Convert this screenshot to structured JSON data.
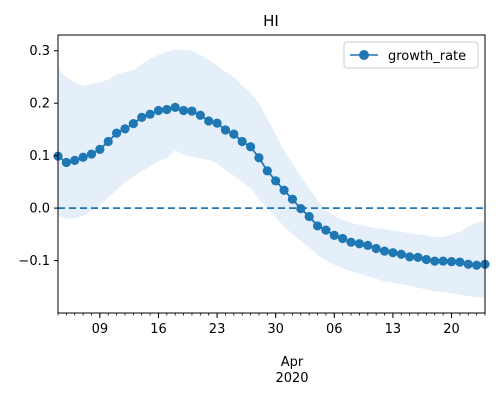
{
  "chart_data": {
    "type": "line",
    "title": "HI",
    "xlabel": "",
    "ylabel": "",
    "x_axis": {
      "type": "date",
      "range": [
        "2020-03-04",
        "2020-04-24"
      ],
      "major_ticks": [
        {
          "date": "2020-03-09",
          "label": "09"
        },
        {
          "date": "2020-03-16",
          "label": "16"
        },
        {
          "date": "2020-03-23",
          "label": "23"
        },
        {
          "date": "2020-03-30",
          "label": "30"
        },
        {
          "date": "2020-04-06",
          "label": "06"
        },
        {
          "date": "2020-04-13",
          "label": "13"
        },
        {
          "date": "2020-04-20",
          "label": "20"
        }
      ],
      "month_label": "Apr",
      "year_label": "2020"
    },
    "ylim": [
      -0.2,
      0.33
    ],
    "y_ticks": [
      {
        "value": -0.1,
        "label": "−0.1"
      },
      {
        "value": 0.0,
        "label": "0.0"
      },
      {
        "value": 0.1,
        "label": "0.1"
      },
      {
        "value": 0.2,
        "label": "0.2"
      },
      {
        "value": 0.3,
        "label": "0.3"
      }
    ],
    "legend": {
      "position": "top-right"
    },
    "reference_line": {
      "y": 0.0,
      "style": "dashed"
    },
    "colors": {
      "series": "#1f77b4",
      "band": "#dce9f7"
    },
    "x": [
      "2020-03-04",
      "2020-03-05",
      "2020-03-06",
      "2020-03-07",
      "2020-03-08",
      "2020-03-09",
      "2020-03-10",
      "2020-03-11",
      "2020-03-12",
      "2020-03-13",
      "2020-03-14",
      "2020-03-15",
      "2020-03-16",
      "2020-03-17",
      "2020-03-18",
      "2020-03-19",
      "2020-03-20",
      "2020-03-21",
      "2020-03-22",
      "2020-03-23",
      "2020-03-24",
      "2020-03-25",
      "2020-03-26",
      "2020-03-27",
      "2020-03-28",
      "2020-03-29",
      "2020-03-30",
      "2020-03-31",
      "2020-04-01",
      "2020-04-02",
      "2020-04-03",
      "2020-04-04",
      "2020-04-05",
      "2020-04-06",
      "2020-04-07",
      "2020-04-08",
      "2020-04-09",
      "2020-04-10",
      "2020-04-11",
      "2020-04-12",
      "2020-04-13",
      "2020-04-14",
      "2020-04-15",
      "2020-04-16",
      "2020-04-17",
      "2020-04-18",
      "2020-04-19",
      "2020-04-20",
      "2020-04-21",
      "2020-04-22",
      "2020-04-23",
      "2020-04-24"
    ],
    "series": [
      {
        "name": "growth_rate",
        "values": [
          0.099,
          0.087,
          0.091,
          0.097,
          0.103,
          0.112,
          0.127,
          0.143,
          0.151,
          0.161,
          0.173,
          0.179,
          0.186,
          0.188,
          0.192,
          0.186,
          0.185,
          0.177,
          0.166,
          0.162,
          0.149,
          0.141,
          0.127,
          0.117,
          0.096,
          0.071,
          0.052,
          0.034,
          0.017,
          -0.001,
          -0.016,
          -0.034,
          -0.042,
          -0.052,
          -0.058,
          -0.065,
          -0.068,
          -0.071,
          -0.077,
          -0.082,
          -0.085,
          -0.088,
          -0.093,
          -0.094,
          -0.098,
          -0.101,
          -0.101,
          -0.102,
          -0.103,
          -0.107,
          -0.109,
          -0.107
        ]
      }
    ],
    "band": {
      "upper": [
        0.265,
        0.25,
        0.24,
        0.233,
        0.237,
        0.24,
        0.245,
        0.255,
        0.26,
        0.262,
        0.275,
        0.285,
        0.292,
        0.298,
        0.302,
        0.302,
        0.3,
        0.292,
        0.283,
        0.272,
        0.26,
        0.25,
        0.233,
        0.22,
        0.2,
        0.17,
        0.14,
        0.11,
        0.085,
        0.06,
        0.037,
        0.015,
        -0.003,
        -0.015,
        -0.022,
        -0.028,
        -0.032,
        -0.035,
        -0.038,
        -0.04,
        -0.043,
        -0.045,
        -0.048,
        -0.05,
        -0.052,
        -0.055,
        -0.055,
        -0.05,
        -0.045,
        -0.035,
        -0.028,
        -0.025
      ],
      "lower": [
        -0.015,
        -0.02,
        -0.02,
        -0.015,
        -0.005,
        0.005,
        0.02,
        0.035,
        0.05,
        0.06,
        0.07,
        0.08,
        0.09,
        0.095,
        0.11,
        0.102,
        0.098,
        0.095,
        0.092,
        0.085,
        0.072,
        0.062,
        0.05,
        0.038,
        0.018,
        0.0,
        -0.018,
        -0.035,
        -0.05,
        -0.062,
        -0.075,
        -0.09,
        -0.1,
        -0.108,
        -0.115,
        -0.12,
        -0.125,
        -0.13,
        -0.135,
        -0.14,
        -0.142,
        -0.145,
        -0.148,
        -0.152,
        -0.155,
        -0.158,
        -0.16,
        -0.162,
        -0.165,
        -0.168,
        -0.17,
        -0.172
      ]
    }
  }
}
